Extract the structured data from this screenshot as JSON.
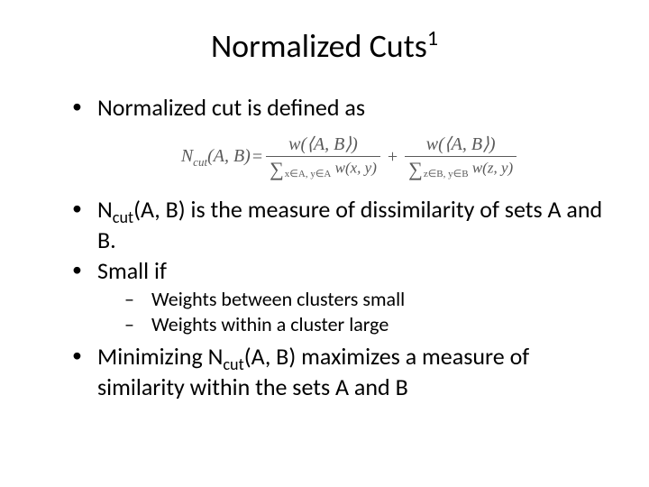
{
  "title": {
    "main": "Normalized Cuts",
    "sup": "1",
    "fontsize": 36
  },
  "bullets": {
    "b1": "Normalized cut is defined as",
    "b2_pre": "N",
    "b2_sub": "cut",
    "b2_post": "(A, B) is the measure of dissimilarity of sets A and B.",
    "b3": "Small if",
    "sub1": "Weights between clusters small",
    "sub2": "Weights within a cluster large",
    "b4_pre": "Minimizing N",
    "b4_sub": "cut",
    "b4_post": "(A, B) maximizes a measure of similarity within the sets A and B"
  },
  "formula": {
    "lhs_N": "N",
    "lhs_sub": "cut",
    "lhs_args": "(A, B)",
    "eq": "=",
    "num1": "w(⟨A, B⟩)",
    "den1_sum_sub": "x∈A, y∈A",
    "den1_fn": "w(x, y)",
    "plus": "+",
    "num2": "w(⟨A, B⟩)",
    "den2_sum_sub": "z∈B, y∈B",
    "den2_fn": "w(z, y)",
    "color": "#5a5a5a"
  },
  "colors": {
    "text": "#000000",
    "background": "#ffffff"
  },
  "fontsizes": {
    "title": 36,
    "bullet": 26,
    "subbullet": 22,
    "formula": 20
  }
}
